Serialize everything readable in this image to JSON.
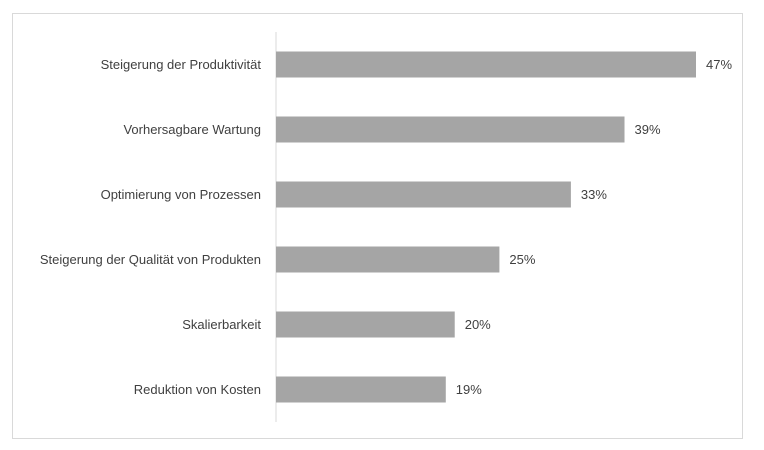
{
  "chart_data": {
    "type": "bar",
    "orientation": "horizontal",
    "categories": [
      "Steigerung der Produktivität",
      "Vorhersagbare Wartung",
      "Optimierung von Prozessen",
      "Steigerung der Qualität von Produkten",
      "Skalierbarkeit",
      "Reduktion von Kosten"
    ],
    "values": [
      47,
      39,
      33,
      25,
      20,
      19
    ],
    "value_labels": [
      "47%",
      "39%",
      "33%",
      "25%",
      "20%",
      "19%"
    ],
    "value_unit": "%",
    "xlim": [
      0,
      50
    ],
    "grid": false,
    "legend": "none",
    "bar_color": "#a5a5a5",
    "text_color": "#404040"
  }
}
